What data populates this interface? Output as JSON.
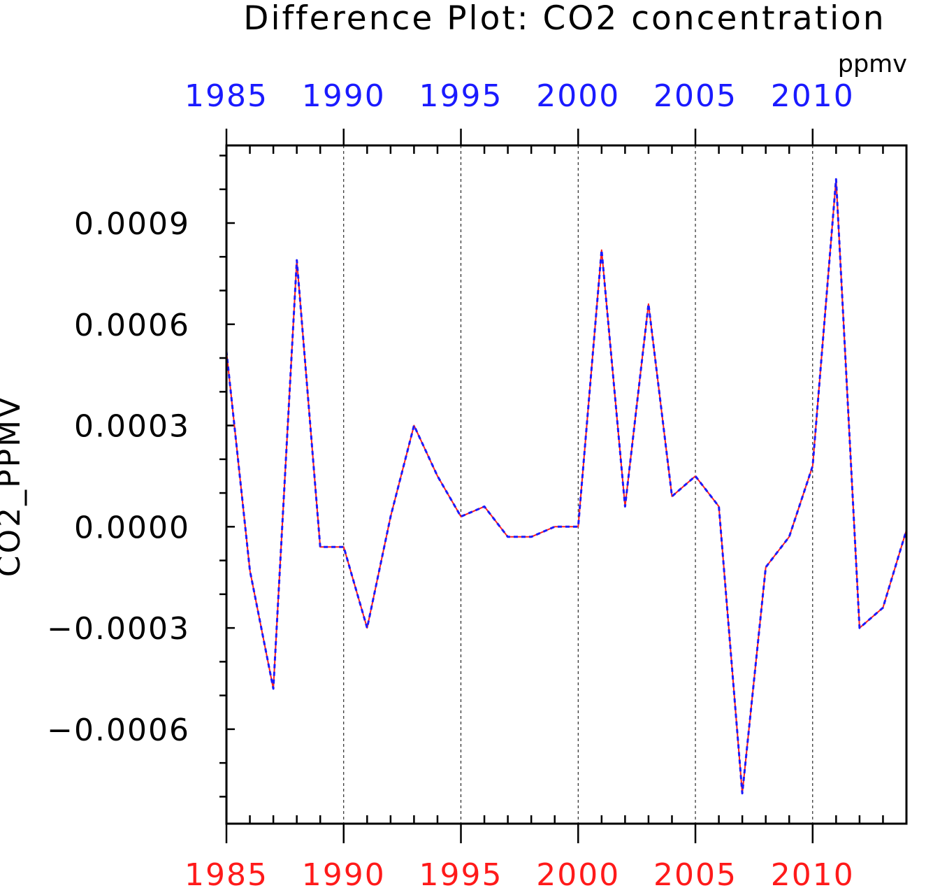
{
  "chart_data": {
    "type": "line",
    "title": "Difference Plot: CO2 concentration",
    "units": "ppmv",
    "ylabel": "CO2_PPMV",
    "xlim": [
      1985,
      2014
    ],
    "ylim": [
      -0.00088,
      0.00113
    ],
    "x_ticks": [
      1985,
      1990,
      1995,
      2000,
      2005,
      2010
    ],
    "x_tick_labels": [
      "1985",
      "1990",
      "1995",
      "2000",
      "2005",
      "2010"
    ],
    "y_ticks": [
      0.0009,
      0.0006,
      0.0003,
      0.0,
      -0.0003,
      -0.0006
    ],
    "y_tick_labels": [
      "0.0009",
      "0.0006",
      "0.0003",
      "0.0000",
      "−0.0003",
      "−0.0006"
    ],
    "grid": "vertical dashed",
    "top_axis_color": "#1a1aff",
    "bottom_axis_color": "#ff1a1a",
    "x": [
      1985,
      1986,
      1987,
      1988,
      1989,
      1990,
      1991,
      1992,
      1993,
      1994,
      1995,
      1996,
      1997,
      1998,
      1999,
      2000,
      2001,
      2002,
      2003,
      2004,
      2005,
      2006,
      2007,
      2008,
      2009,
      2010,
      2011,
      2012,
      2013,
      2014
    ],
    "series": [
      {
        "color": "#ff2020",
        "style": "solid",
        "values": [
          0.00052,
          -0.00013,
          -0.00048,
          0.00079,
          -6e-05,
          -6e-05,
          -0.0003,
          3e-05,
          0.0003,
          0.00015,
          3e-05,
          6e-05,
          -3e-05,
          -3e-05,
          0.0,
          0.0,
          0.00082,
          6e-05,
          0.00066,
          9e-05,
          0.00015,
          6e-05,
          -0.00079,
          -0.00012,
          -3e-05,
          0.00018,
          0.00103,
          -0.0003,
          -0.00024,
          -1e-05
        ]
      },
      {
        "color": "#1a1aff",
        "style": "dashed",
        "values": [
          0.00052,
          -0.00013,
          -0.00048,
          0.00079,
          -6e-05,
          -6e-05,
          -0.0003,
          3e-05,
          0.0003,
          0.00015,
          3e-05,
          6e-05,
          -3e-05,
          -3e-05,
          0.0,
          0.0,
          0.00082,
          6e-05,
          0.00066,
          9e-05,
          0.00015,
          6e-05,
          -0.00079,
          -0.00012,
          -3e-05,
          0.00018,
          0.00103,
          -0.0003,
          -0.00024,
          -1e-05
        ]
      }
    ]
  }
}
